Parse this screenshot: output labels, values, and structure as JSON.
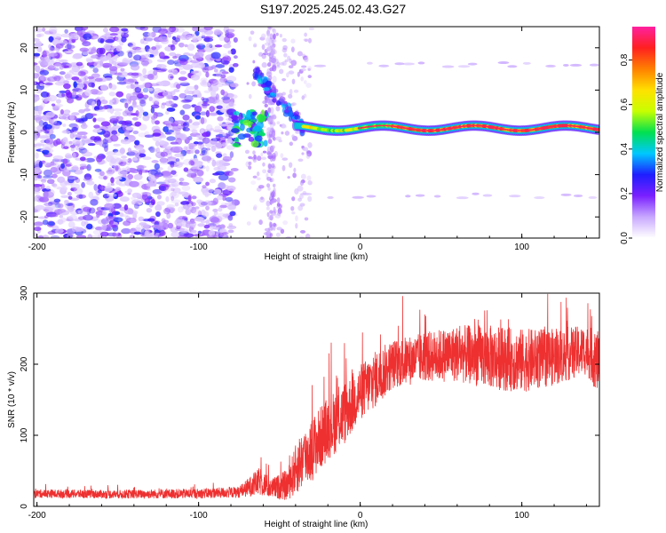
{
  "figure_title": "S197.2025.245.02.43.G27",
  "chart_data": [
    {
      "type": "heatmap",
      "title": "S197.2025.245.02.43.G27",
      "xlabel": "Height of straight line (km)",
      "ylabel": "Frequency (Hz)",
      "xlim": [
        -202,
        148
      ],
      "ylim": [
        -25,
        25
      ],
      "x_ticks": [
        -200,
        -100,
        0,
        100
      ],
      "x_tick_labels": [
        "-200",
        "-100",
        "0",
        "100"
      ],
      "y_ticks": [
        -20,
        -10,
        0,
        10,
        20
      ],
      "y_tick_labels": [
        "-20",
        "-10",
        "0",
        "10",
        "20"
      ],
      "colorbar": {
        "label": "Normalized spectral amplitude",
        "range": [
          0,
          0.95
        ],
        "ticks": [
          0.0,
          0.2,
          0.4,
          0.6,
          0.8
        ],
        "tick_labels": [
          "0.0",
          "0.2",
          "0.4",
          "0.6",
          "0.8"
        ],
        "colors": [
          "#ffffff",
          "#c8a8ff",
          "#7a1fff",
          "#1e1eff",
          "#00c8ff",
          "#00e050",
          "#c8ff00",
          "#ffe000",
          "#ff8000",
          "#ff2020",
          "#ff20a0"
        ]
      },
      "signal_band": {
        "x_start": -80,
        "x_end": 148,
        "frequency_center_hz": 1,
        "peak_amplitude": 0.9
      },
      "noise_region": {
        "x_start": -202,
        "x_end": -77,
        "frequency_range": [
          -25,
          25
        ],
        "amplitude_range": [
          0.05,
          0.3
        ]
      }
    },
    {
      "type": "line",
      "xlabel": "Height of straight line (km)",
      "ylabel": "SNR (10 * v/v)",
      "xlim": [
        -202,
        148
      ],
      "ylim": [
        0,
        300
      ],
      "x_ticks": [
        -200,
        -100,
        0,
        100
      ],
      "x_tick_labels": [
        "-200",
        "-100",
        "0",
        "100"
      ],
      "y_ticks": [
        0,
        100,
        200,
        300
      ],
      "y_tick_labels": [
        "0",
        "100",
        "200",
        "300"
      ],
      "series": [
        {
          "name": "SNR",
          "color": "#ee3030",
          "envelope_x": [
            -202,
            -150,
            -100,
            -75,
            -62,
            -55,
            -45,
            -38,
            -30,
            -20,
            -10,
            0,
            10,
            20,
            30,
            40,
            60,
            80,
            100,
            120,
            140,
            148
          ],
          "envelope_mean": [
            18,
            17,
            18,
            20,
            35,
            25,
            30,
            60,
            80,
            110,
            130,
            160,
            180,
            200,
            205,
            210,
            215,
            210,
            205,
            210,
            220,
            200
          ],
          "envelope_spread": [
            6,
            6,
            7,
            8,
            20,
            14,
            22,
            40,
            45,
            45,
            45,
            40,
            40,
            35,
            35,
            35,
            40,
            45,
            45,
            40,
            35,
            45
          ]
        }
      ]
    }
  ]
}
